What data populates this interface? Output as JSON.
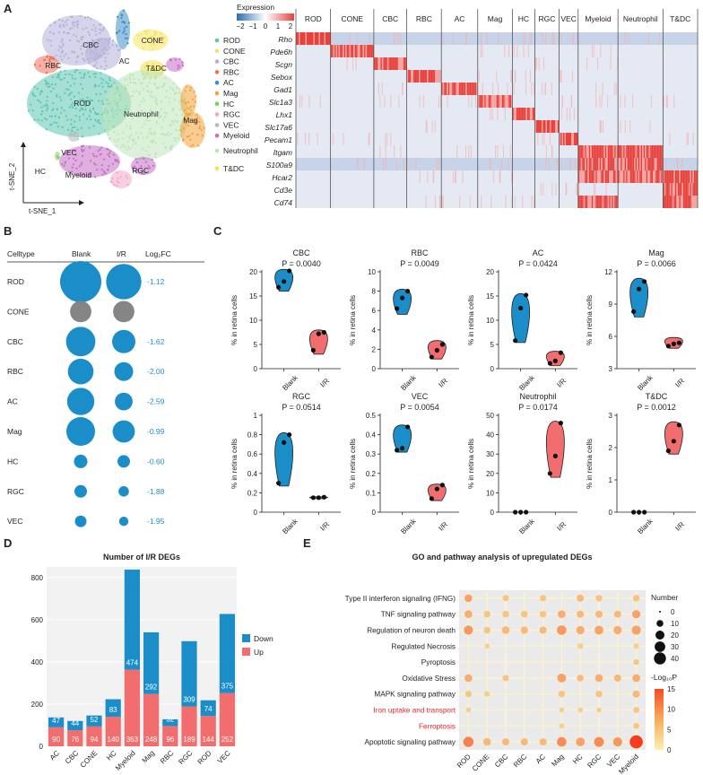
{
  "panels": {
    "a": "A",
    "b": "B",
    "c": "C",
    "d": "D",
    "e": "E"
  },
  "colors": {
    "blue": "#1b8ec9",
    "red": "#f26d6d",
    "gray": "#858585",
    "fc": "#1b8ec9",
    "clusters": {
      "ROD": "#5cc7b2",
      "CONE": "#f6e35f",
      "CBC": "#b5b0d8",
      "RBC": "#ee6f5b",
      "AC": "#3c8fc5",
      "Mag": "#f2a23a",
      "HC": "#7ccf55",
      "RGC": "#f2a6c8",
      "VEC": "#b8b8b8",
      "Myeloid": "#c46fc4",
      "Neutrophil": "#bde5b9",
      "T&DC": "#f2e24a"
    }
  },
  "tsne": {
    "xlabel": "t-SNE_1",
    "ylabel": "t-SNE_2",
    "labels": [
      "CBC",
      "CONE",
      "AC",
      "T&DC",
      "RBC",
      "ROD",
      "Neutrophil",
      "Mag",
      "VEC",
      "HC",
      "Myeloid",
      "RGC"
    ]
  },
  "legend": {
    "items": [
      "ROD",
      "CONE",
      "CBC",
      "RBC",
      "AC",
      "Mag",
      "HC",
      "RGC",
      "VEC",
      "Myeloid",
      "Neutrophil",
      "T&DC"
    ]
  },
  "heatmap": {
    "title": "Expression",
    "scale_ticks": [
      "−2",
      "−1",
      "0",
      "1",
      "2"
    ],
    "columns": [
      "ROD",
      "CONE",
      "CBC",
      "RBC",
      "AC",
      "Mag",
      "HC",
      "RGC",
      "VEC",
      "Myeloid",
      "Neutrophil",
      "T&DC"
    ],
    "genes": [
      "Rho",
      "Pde6h",
      "Scgn",
      "Sebox",
      "Gad1",
      "Slc1a3",
      "Lhx1",
      "Slc17a6",
      "Pecam1",
      "Itgam",
      "S100a9",
      "Hcar2",
      "Cd3e",
      "Cd74"
    ]
  },
  "panel_b": {
    "headers": [
      "Celltype",
      "Blank",
      "I/R",
      "Log₂FC"
    ],
    "rows": [
      {
        "type": "ROD",
        "blank": 1.0,
        "ir": 0.7,
        "fc": "-1.12",
        "gray": false
      },
      {
        "type": "CONE",
        "blank": 0.2,
        "ir": 0.2,
        "fc": "",
        "gray": true
      },
      {
        "type": "CBC",
        "blank": 0.45,
        "ir": 0.25,
        "fc": "-1.62",
        "gray": false
      },
      {
        "type": "RBC",
        "blank": 0.32,
        "ir": 0.14,
        "fc": "-2.00",
        "gray": false
      },
      {
        "type": "AC",
        "blank": 0.37,
        "ir": 0.12,
        "fc": "-2.59",
        "gray": false
      },
      {
        "type": "Mag",
        "blank": 0.42,
        "ir": 0.22,
        "fc": "-0.99",
        "gray": false
      },
      {
        "type": "HC",
        "blank": 0.05,
        "ir": 0.04,
        "fc": "-0.60",
        "gray": false
      },
      {
        "type": "RGC",
        "blank": 0.04,
        "ir": 0.02,
        "fc": "-1.88",
        "gray": false
      },
      {
        "type": "VEC",
        "blank": 0.03,
        "ir": 0.012,
        "fc": "-1.95",
        "gray": false
      }
    ]
  },
  "chart_data": [
    {
      "type": "violin",
      "title": "Panel C",
      "ylabel": "% in retina cells",
      "xcategories": [
        "Blank",
        "I/R"
      ],
      "subplots": [
        {
          "name": "CBC",
          "p": "P = 0.0040",
          "ylim": [
            0,
            20
          ],
          "yticks": [
            0,
            5,
            10,
            15,
            20
          ],
          "blank": [
            16.8,
            18,
            20.2
          ],
          "ir": [
            3.8,
            7.2,
            7.5
          ],
          "bmin": 16,
          "bmax": 20.5,
          "imin": 3,
          "imax": 8
        },
        {
          "name": "RBC",
          "p": "P = 0.0049",
          "ylim": [
            0,
            10
          ],
          "yticks": [
            0,
            2,
            4,
            6,
            8,
            10
          ],
          "blank": [
            6.2,
            7.3,
            8
          ],
          "ir": [
            1.2,
            1.9,
            2.5
          ],
          "bmin": 5.6,
          "bmax": 8.2,
          "imin": 1,
          "imax": 2.9
        },
        {
          "name": "AC",
          "p": "P = 0.0424",
          "ylim": [
            0,
            20
          ],
          "yticks": [
            0,
            5,
            10,
            15,
            20
          ],
          "blank": [
            5.8,
            12.5,
            15.2
          ],
          "ir": [
            1.1,
            1.6,
            3.3
          ],
          "bmin": 5.4,
          "bmax": 15.5,
          "imin": 0.6,
          "imax": 3.6
        },
        {
          "name": "Mag",
          "p": "P = 0.0066",
          "ylim": [
            3,
            12
          ],
          "yticks": [
            3,
            6,
            9,
            12
          ],
          "blank": [
            8.3,
            10.4,
            11.1
          ],
          "ir": [
            5.1,
            5.3,
            5.4
          ],
          "bmin": 7.8,
          "bmax": 11.4,
          "imin": 4.9,
          "imax": 5.9
        },
        {
          "name": "RGC",
          "p": "P = 0.0514",
          "ylim": [
            0,
            1.0
          ],
          "yticks": [
            0,
            0.2,
            0.4,
            0.6,
            0.8,
            1.0
          ],
          "blank": [
            0.3,
            0.72,
            0.8
          ],
          "ir": [
            0.15,
            0.15,
            0.155
          ],
          "bmin": 0.27,
          "bmax": 0.82,
          "imin": 0.14,
          "imax": 0.16
        },
        {
          "name": "VEC",
          "p": "P = 0.0054",
          "ylim": [
            0,
            0.5
          ],
          "yticks": [
            0,
            0.1,
            0.2,
            0.3,
            0.4,
            0.5
          ],
          "blank": [
            0.32,
            0.33,
            0.44
          ],
          "ir": [
            0.07,
            0.12,
            0.14
          ],
          "bmin": 0.31,
          "bmax": 0.45,
          "imin": 0.06,
          "imax": 0.145
        },
        {
          "name": "Neutrophil",
          "p": "P = 0.0174",
          "ylim": [
            0,
            50
          ],
          "yticks": [
            0,
            10,
            20,
            30,
            40,
            50
          ],
          "blank": [
            0,
            0,
            0
          ],
          "ir": [
            20,
            29,
            46
          ],
          "bmin": 0,
          "bmax": 0,
          "imin": 18,
          "imax": 47
        },
        {
          "name": "T&DC",
          "p": "P = 0.0012",
          "ylim": [
            0,
            3
          ],
          "yticks": [
            0,
            1,
            2,
            3
          ],
          "blank": [
            0,
            0,
            0
          ],
          "ir": [
            1.9,
            2.2,
            2.7
          ],
          "bmin": 0,
          "bmax": 0,
          "imin": 1.8,
          "imax": 2.8
        }
      ]
    },
    {
      "type": "bar",
      "stacked": true,
      "title": "Number of I/R DEGs",
      "ylim": [
        0,
        850
      ],
      "yticks": [
        0,
        200,
        400,
        600,
        800
      ],
      "categories": [
        "AC",
        "CBC",
        "CONE",
        "HC",
        "Myeloid",
        "Mag",
        "RBC",
        "RGC",
        "ROD",
        "VEC"
      ],
      "series": [
        {
          "name": "Up",
          "values": [
            90,
            76,
            94,
            140,
            363,
            248,
            96,
            189,
            144,
            252
          ]
        },
        {
          "name": "Down",
          "values": [
            47,
            44,
            52,
            83,
            474,
            292,
            32,
            309,
            74,
            375
          ]
        }
      ],
      "legend": [
        "Down",
        "Up"
      ]
    },
    {
      "type": "scatter",
      "title": "GO and pathway analysis of upregulated DEGs",
      "xcategories": [
        "ROD",
        "CONE",
        "CBC",
        "RBC",
        "AC",
        "Mag",
        "HC",
        "RGC",
        "VEC",
        "Myeloid"
      ],
      "terms": [
        {
          "name": "Type II interferon signaling (IFNG)",
          "red": false
        },
        {
          "name": "TNF signaling pathway",
          "red": false
        },
        {
          "name": "Regulation of neuron death",
          "red": false
        },
        {
          "name": "Regulated Necrosis",
          "red": false
        },
        {
          "name": "Pyroptosis",
          "red": false
        },
        {
          "name": "Oxidative Stress",
          "red": false
        },
        {
          "name": "MAPK signaling pathway",
          "red": false
        },
        {
          "name": "Iron uptake and transport",
          "red": true
        },
        {
          "name": "Ferroptosis",
          "red": true
        },
        {
          "name": "Apoptotic signaling pathway",
          "red": false
        }
      ],
      "points": [
        [
          0,
          0,
          10,
          6
        ],
        [
          2,
          0,
          5,
          3
        ],
        [
          4,
          0,
          5,
          3
        ],
        [
          6,
          0,
          8,
          4
        ],
        [
          7,
          0,
          6,
          3
        ],
        [
          9,
          0,
          6,
          3
        ],
        [
          0,
          1,
          10,
          5
        ],
        [
          1,
          1,
          6,
          3
        ],
        [
          2,
          1,
          6,
          3
        ],
        [
          3,
          1,
          6,
          3
        ],
        [
          4,
          1,
          6,
          3
        ],
        [
          5,
          1,
          10,
          5
        ],
        [
          6,
          1,
          8,
          4
        ],
        [
          7,
          1,
          8,
          4
        ],
        [
          8,
          1,
          8,
          4
        ],
        [
          9,
          1,
          12,
          6
        ],
        [
          0,
          2,
          16,
          7
        ],
        [
          1,
          2,
          6,
          3
        ],
        [
          2,
          2,
          10,
          4
        ],
        [
          3,
          2,
          8,
          4
        ],
        [
          4,
          2,
          8,
          4
        ],
        [
          5,
          2,
          18,
          7
        ],
        [
          6,
          2,
          12,
          5
        ],
        [
          7,
          2,
          14,
          6
        ],
        [
          8,
          2,
          12,
          5
        ],
        [
          9,
          2,
          16,
          6
        ],
        [
          1,
          3,
          2,
          2
        ],
        [
          6,
          3,
          3,
          2
        ],
        [
          9,
          3,
          3,
          2
        ],
        [
          9,
          4,
          3,
          3
        ],
        [
          0,
          5,
          10,
          5
        ],
        [
          2,
          5,
          5,
          3
        ],
        [
          5,
          5,
          14,
          6
        ],
        [
          6,
          5,
          6,
          4
        ],
        [
          7,
          5,
          10,
          5
        ],
        [
          8,
          5,
          8,
          4
        ],
        [
          9,
          5,
          10,
          5
        ],
        [
          0,
          6,
          5,
          3
        ],
        [
          1,
          6,
          3,
          2
        ],
        [
          5,
          6,
          6,
          3
        ],
        [
          7,
          6,
          6,
          3
        ],
        [
          9,
          6,
          8,
          4
        ],
        [
          0,
          7,
          2,
          2
        ],
        [
          5,
          7,
          2,
          2
        ],
        [
          6,
          7,
          2,
          2
        ],
        [
          7,
          7,
          2,
          2
        ],
        [
          9,
          7,
          4,
          3
        ],
        [
          5,
          8,
          2,
          2
        ],
        [
          9,
          8,
          4,
          3
        ],
        [
          0,
          9,
          22,
          9
        ],
        [
          1,
          9,
          10,
          4
        ],
        [
          2,
          9,
          8,
          4
        ],
        [
          3,
          9,
          8,
          4
        ],
        [
          4,
          9,
          8,
          4
        ],
        [
          5,
          9,
          18,
          8
        ],
        [
          6,
          9,
          14,
          6
        ],
        [
          7,
          9,
          20,
          8
        ],
        [
          8,
          9,
          16,
          7
        ],
        [
          9,
          9,
          42,
          15
        ]
      ],
      "size_legend": {
        "title": "Number",
        "values": [
          0,
          10,
          20,
          30,
          40
        ]
      },
      "color_legend": {
        "title": "-Log₁₀P",
        "ticks": [
          0,
          5,
          10,
          15
        ]
      }
    }
  ]
}
